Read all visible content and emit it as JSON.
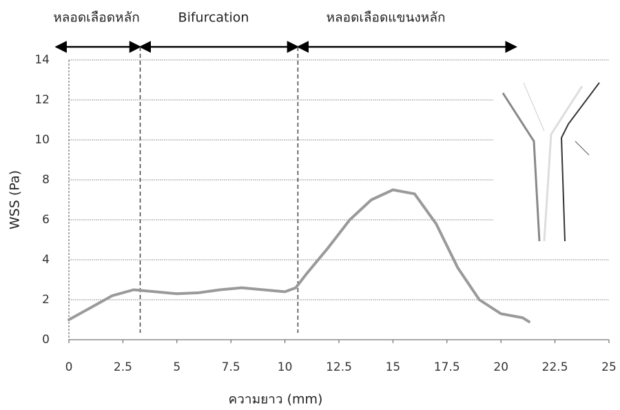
{
  "chart_data": {
    "type": "line",
    "x_label": "ความยาว (mm)",
    "y_label": "WSS (Pa)",
    "regions": [
      {
        "label": "หลอดเลือดหลัก",
        "start": -0.6,
        "end": 3.3
      },
      {
        "label": "Bifurcation",
        "start": 3.3,
        "end": 10.6
      },
      {
        "label": "หลอดเลือดแขนงหลัก",
        "start": 10.6,
        "end": 20.7
      }
    ],
    "series": [
      {
        "color": "#9a9a9a",
        "x": [
          0,
          1,
          2,
          3,
          4,
          5,
          6,
          7,
          8,
          9,
          10,
          10.5,
          11,
          12,
          13,
          14,
          15,
          16,
          17,
          18,
          19,
          20,
          21,
          21.3
        ],
        "values": [
          1.0,
          1.6,
          2.2,
          2.5,
          2.4,
          2.3,
          2.35,
          2.5,
          2.6,
          2.5,
          2.4,
          2.6,
          3.3,
          4.6,
          6.0,
          7.0,
          7.5,
          7.3,
          5.8,
          3.6,
          2.0,
          1.3,
          1.1,
          0.9
        ]
      }
    ],
    "xlim": [
      0,
      25
    ],
    "ylim": [
      0,
      14
    ],
    "xticks": [
      0,
      2.5,
      5,
      7.5,
      10,
      12.5,
      15,
      17.5,
      20,
      22.5,
      25
    ],
    "yticks": [
      0,
      2,
      4,
      6,
      8,
      10,
      12,
      14
    ],
    "grid": true
  }
}
